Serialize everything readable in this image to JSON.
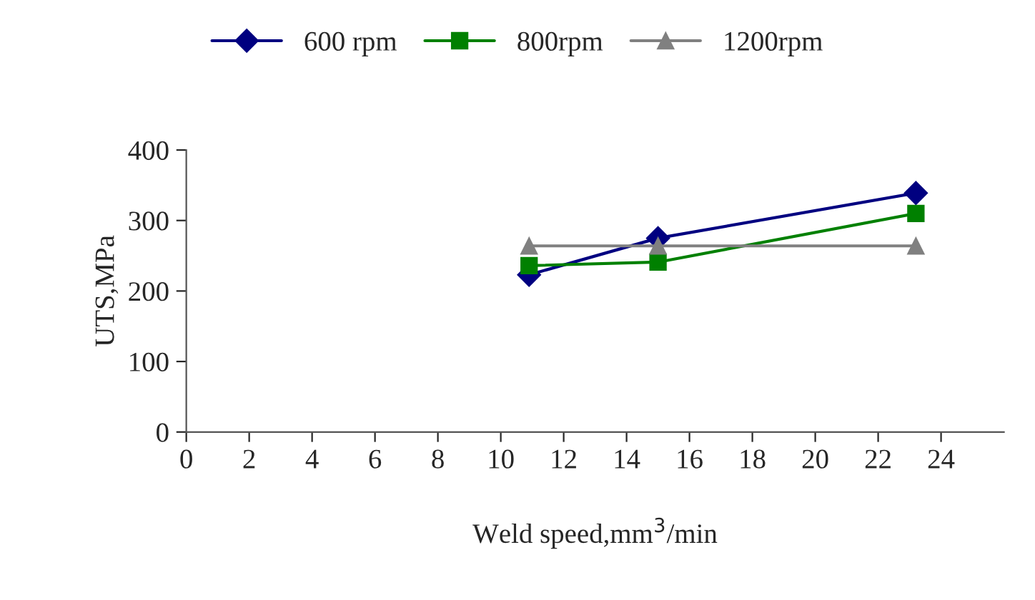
{
  "chart_data": {
    "type": "line",
    "xlabel": "Weld speed,mm$^{3}$/min",
    "ylabel": "UTS,MPa",
    "x": [
      10.9,
      15.0,
      23.2
    ],
    "series": [
      {
        "name": "600 rpm",
        "color": "#000080",
        "values": [
          223,
          275,
          339
        ],
        "marker": "diamond"
      },
      {
        "name": "800rpm",
        "color": "#008000",
        "values": [
          236,
          241,
          310
        ],
        "marker": "square"
      },
      {
        "name": "1200rpm",
        "color": "#808080",
        "values": [
          264,
          264,
          264
        ],
        "marker": "triangle"
      }
    ],
    "xlim": [
      0,
      26
    ],
    "xticks": [
      0,
      2,
      4,
      6,
      8,
      10,
      12,
      14,
      16,
      18,
      20,
      22,
      24
    ],
    "ylim": [
      0,
      400
    ],
    "yticks": [
      0,
      100,
      200,
      300,
      400
    ],
    "grid": false,
    "legend": "top",
    "line_style": "solid"
  }
}
